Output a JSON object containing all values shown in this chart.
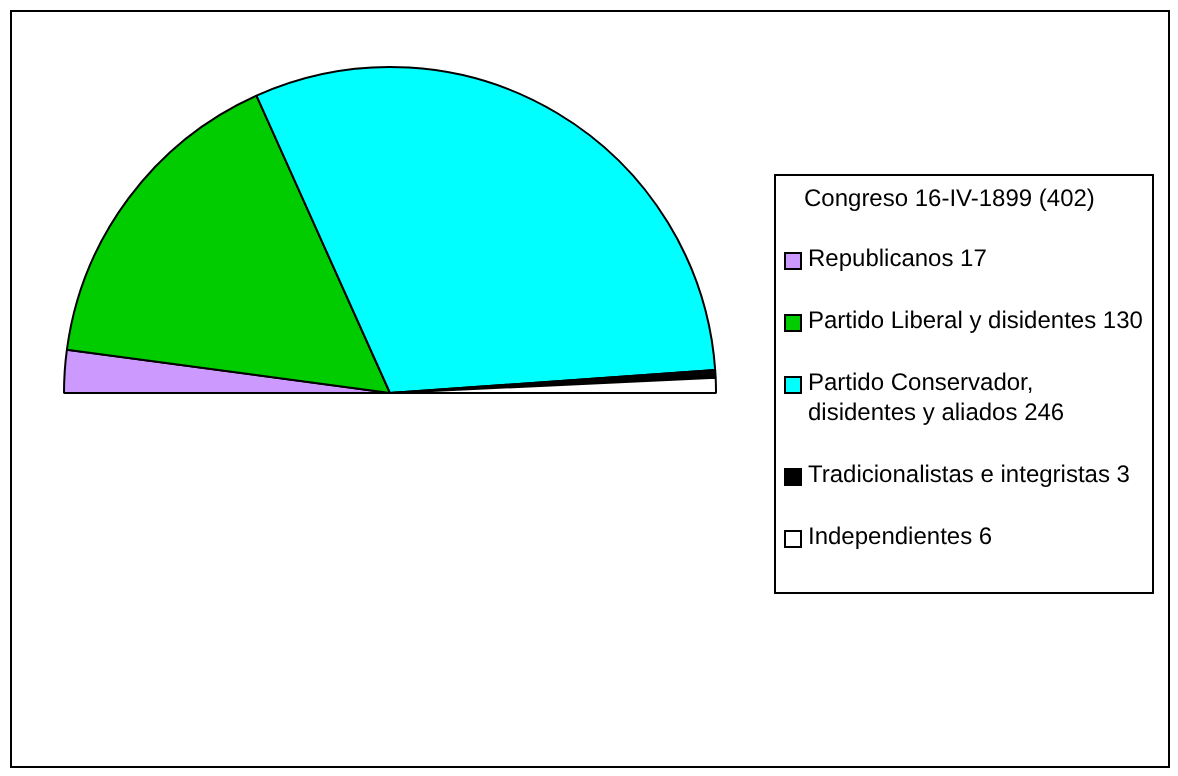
{
  "chart_data": {
    "type": "pie",
    "legend_title": "Congreso 16-IV-1899 (402)",
    "legend": "right",
    "categories": [
      "Republicanos 17",
      "Partido Liberal y  disidentes 130",
      "Partido Conservador, disidentes y aliados 246",
      "Tradicionalistas e integristas 3",
      "Independientes 6"
    ],
    "values": [
      17,
      130,
      246,
      3,
      6
    ],
    "colors": [
      "#cc99ff",
      "#00cc00",
      "#00ffff",
      "#000000",
      "#ffffff"
    ]
  }
}
